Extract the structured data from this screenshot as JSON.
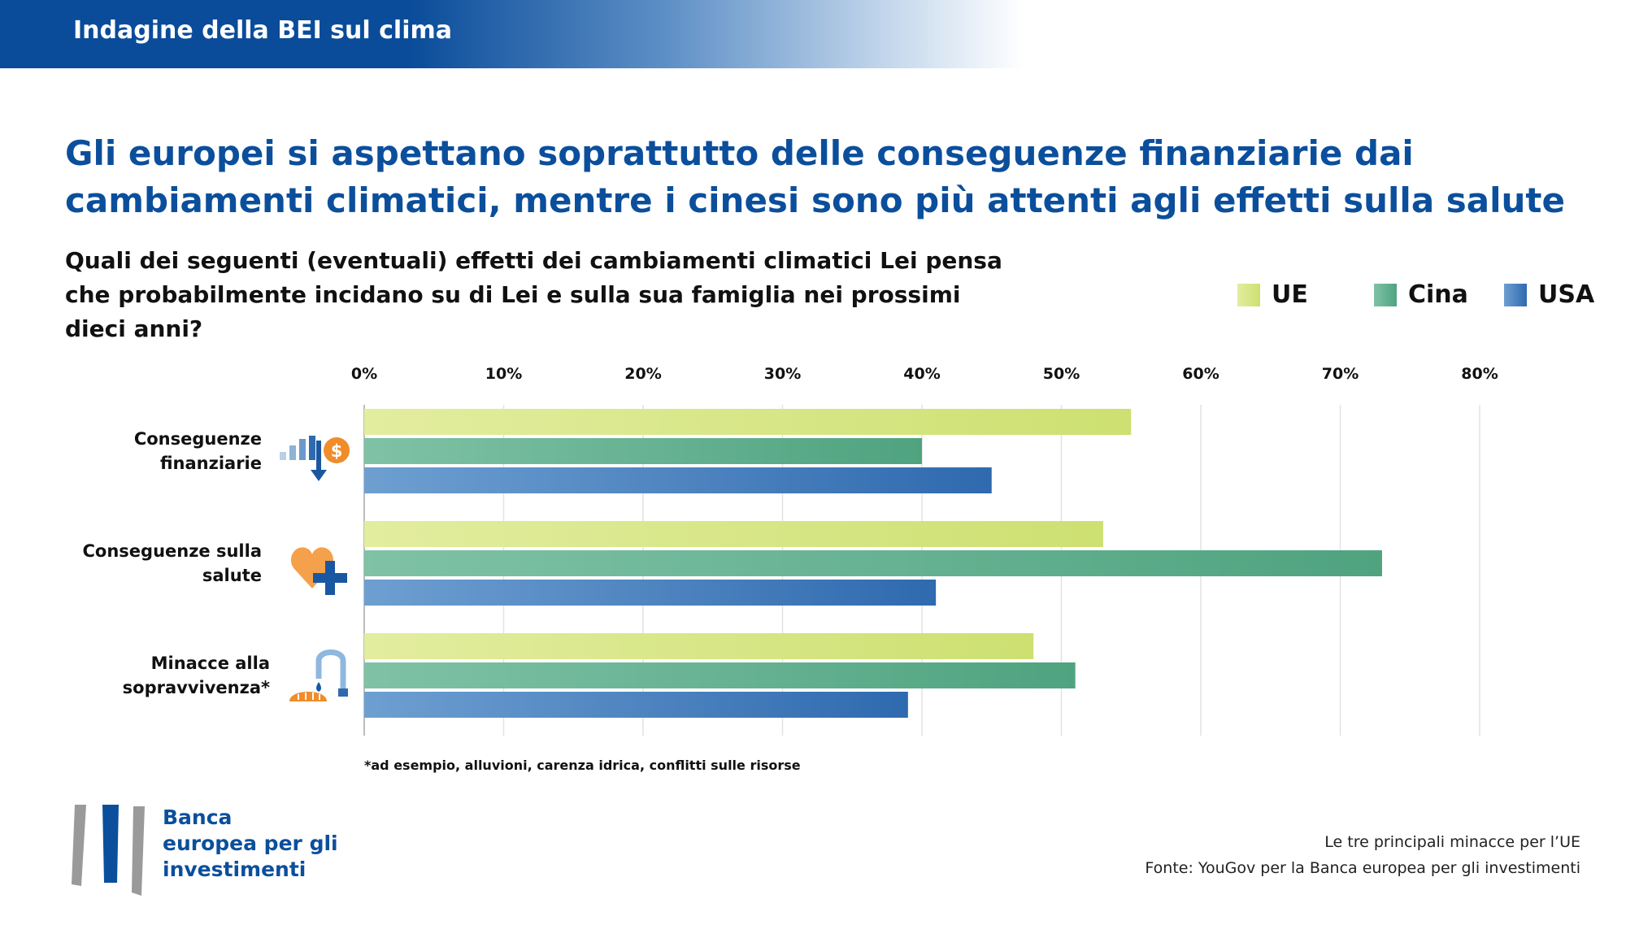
{
  "header": {
    "title": "Indagine della BEI sul clima"
  },
  "title": "Gli europei si aspettano soprattutto delle conseguenze finanziarie dai cambiamenti climatici, mentre i cinesi sono più attenti agli effetti sulla salute",
  "subtitle": "Quali dei seguenti (eventuali) effetti dei cambiamenti climatici Lei pensa che probabilmente incidano su di Lei e sulla sua famiglia nei prossimi dieci anni?",
  "footnote": "*ad esempio, alluvioni, carenza idrica, conflitti sulle risorse",
  "logo": {
    "line1": "Banca",
    "line2": "europea per gli",
    "line3": "investimenti"
  },
  "source": {
    "line1": "Le tre principali minacce per l’UE",
    "line2": "Fonte: YouGov per la Banca europea per gli investimenti"
  },
  "chart_data": {
    "type": "bar",
    "orientation": "horizontal",
    "categories": [
      {
        "line1": "Conseguenze",
        "line2": "finanziarie",
        "icon": "finance-icon"
      },
      {
        "line1": "Conseguenze sulla",
        "line2": "salute",
        "icon": "health-icon"
      },
      {
        "line1": "Minacce alla",
        "line2": "sopravvivenza*",
        "icon": "survival-icon"
      }
    ],
    "series": [
      {
        "name": "UE",
        "values": [
          55,
          53,
          48
        ],
        "colors": [
          "#e3ed9f",
          "#cde071"
        ]
      },
      {
        "name": "Cina",
        "values": [
          40,
          73,
          51
        ],
        "colors": [
          "#7fc2a6",
          "#4fa37f"
        ]
      },
      {
        "name": "USA",
        "values": [
          45,
          41,
          39
        ],
        "colors": [
          "#6e9fd1",
          "#2f6aaf"
        ]
      }
    ],
    "xlim": [
      0,
      80
    ],
    "xticks": [
      "0%",
      "10%",
      "20%",
      "30%",
      "40%",
      "50%",
      "60%",
      "70%",
      "80%"
    ],
    "grid": true,
    "legend_position": "top-right"
  }
}
